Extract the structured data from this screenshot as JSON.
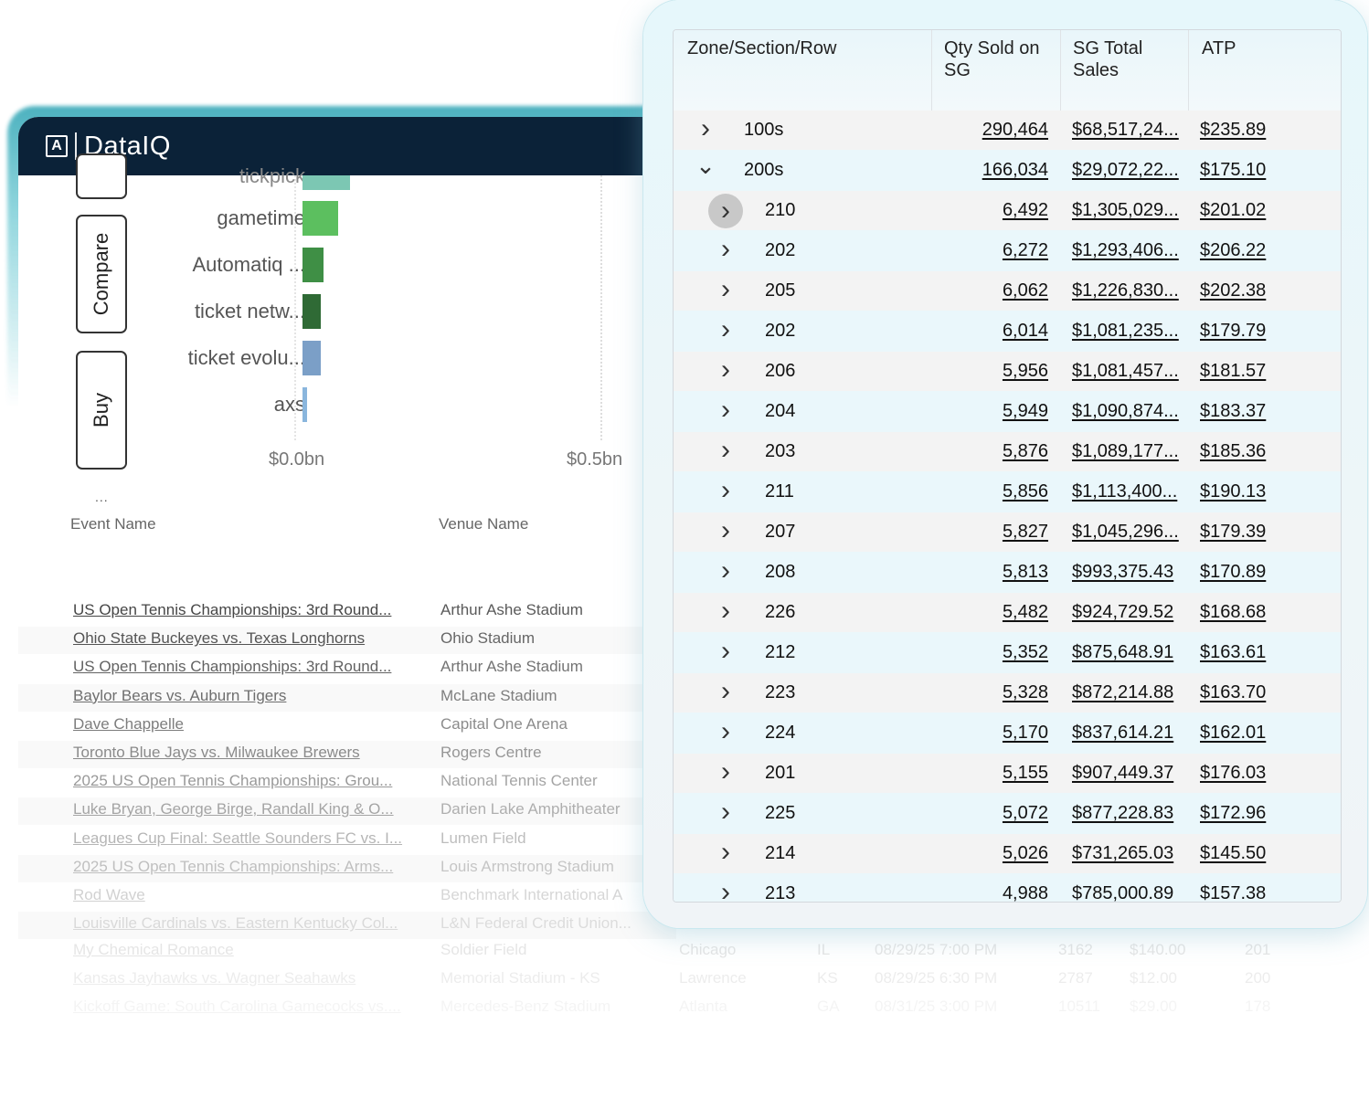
{
  "app": {
    "brand": "DataIQ",
    "logo_glyph": "A"
  },
  "side_buttons": {
    "top_partial": "",
    "compare": "Compare",
    "buy": "Buy",
    "more": "..."
  },
  "bar_chart": {
    "partial_label": "tickpick",
    "labels": [
      "gametime",
      "Automatiq ...",
      "ticket netw...",
      "ticket evolu...",
      "axs"
    ],
    "tick_labels": [
      "$0.0bn",
      "$0.5bn"
    ]
  },
  "chart_data": {
    "type": "bar",
    "orientation": "horizontal",
    "categories": [
      "tickpick",
      "gametime",
      "Automatiq ...",
      "ticket netw...",
      "ticket evolu...",
      "axs"
    ],
    "values": [
      0.08,
      0.06,
      0.035,
      0.03,
      0.03,
      0.008
    ],
    "xlim": [
      0,
      0.5
    ],
    "x_ticks": [
      "$0.0bn",
      "$0.5bn"
    ],
    "colors": [
      "#7cc7b3",
      "#5cbf5f",
      "#3f8f45",
      "#2f6a35",
      "#7b9fc7",
      "#8ab6dd"
    ]
  },
  "events": {
    "headers": {
      "event": "Event Name",
      "venue": "Venue Name"
    },
    "rows": [
      {
        "name": "US Open Tennis Championships: 3rd Round...",
        "venue": "Arthur Ashe Stadium"
      },
      {
        "name": "Ohio State Buckeyes vs. Texas Longhorns",
        "venue": "Ohio Stadium"
      },
      {
        "name": "US Open Tennis Championships: 3rd Round...",
        "venue": "Arthur Ashe Stadium"
      },
      {
        "name": "Baylor Bears vs. Auburn Tigers",
        "venue": "McLane Stadium"
      },
      {
        "name": "Dave Chappelle",
        "venue": "Capital One Arena"
      },
      {
        "name": "Toronto Blue Jays vs. Milwaukee Brewers",
        "venue": "Rogers Centre"
      },
      {
        "name": "2025 US Open Tennis Championships: Grou...",
        "venue": "National Tennis Center"
      },
      {
        "name": "Luke Bryan, George Birge, Randall King & O...",
        "venue": "Darien Lake Amphitheater"
      },
      {
        "name": "Leagues Cup Final: Seattle Sounders FC vs. I...",
        "venue": "Lumen Field"
      },
      {
        "name": "2025 US Open Tennis Championships: Arms...",
        "venue": "Louis Armstrong Stadium"
      },
      {
        "name": "Rod Wave",
        "venue": "Benchmark International A"
      },
      {
        "name": "Louisville Cardinals vs. Eastern Kentucky Col...",
        "venue": "L&N Federal Credit Union..."
      }
    ],
    "faded_rows": [
      {
        "name": "My Chemical Romance",
        "venue": "Soldier Field",
        "city": "Chicago",
        "state": "IL",
        "date": "08/29/25 7:00 PM",
        "qty": "3162",
        "price": "$140.00",
        "section": "201"
      },
      {
        "name": "Kansas Jayhawks vs. Wagner Seahawks",
        "venue": "Memorial Stadium - KS",
        "city": "Lawrence",
        "state": "KS",
        "date": "08/29/25 6:30 PM",
        "qty": "2787",
        "price": "$12.00",
        "section": "200"
      },
      {
        "name": "Kickoff Game: South Carolina Gamecocks vs....",
        "venue": "Mercedes-Benz Stadium",
        "city": "Atlanta",
        "state": "GA",
        "date": "08/31/25 3:00 PM",
        "qty": "10511",
        "price": "$29.00",
        "section": "178"
      }
    ]
  },
  "table": {
    "headers": {
      "zone": "Zone/Section/Row",
      "qty": "Qty Sold on SG",
      "sales": "SG Total Sales",
      "atp": "ATP"
    },
    "rows": [
      {
        "label": "100s",
        "qty": "290,464",
        "sales": "$68,517,24...",
        "atp": "$235.89",
        "level": 0,
        "expanded": false
      },
      {
        "label": "200s",
        "qty": "166,034",
        "sales": "$29,072,22...",
        "atp": "$175.10",
        "level": 0,
        "expanded": true
      },
      {
        "label": "210",
        "qty": "6,492",
        "sales": "$1,305,029...",
        "atp": "$201.02",
        "level": 1,
        "expanded": false,
        "hover": true
      },
      {
        "label": "202",
        "qty": "6,272",
        "sales": "$1,293,406...",
        "atp": "$206.22",
        "level": 1,
        "expanded": false
      },
      {
        "label": "205",
        "qty": "6,062",
        "sales": "$1,226,830...",
        "atp": "$202.38",
        "level": 1,
        "expanded": false
      },
      {
        "label": "202",
        "qty": "6,014",
        "sales": "$1,081,235...",
        "atp": "$179.79",
        "level": 1,
        "expanded": false
      },
      {
        "label": "206",
        "qty": "5,956",
        "sales": "$1,081,457...",
        "atp": "$181.57",
        "level": 1,
        "expanded": false
      },
      {
        "label": "204",
        "qty": "5,949",
        "sales": "$1,090,874...",
        "atp": "$183.37",
        "level": 1,
        "expanded": false
      },
      {
        "label": "203",
        "qty": "5,876",
        "sales": "$1,089,177...",
        "atp": "$185.36",
        "level": 1,
        "expanded": false
      },
      {
        "label": "211",
        "qty": "5,856",
        "sales": "$1,113,400...",
        "atp": "$190.13",
        "level": 1,
        "expanded": false
      },
      {
        "label": "207",
        "qty": "5,827",
        "sales": "$1,045,296...",
        "atp": "$179.39",
        "level": 1,
        "expanded": false
      },
      {
        "label": "208",
        "qty": "5,813",
        "sales": "$993,375.43",
        "atp": "$170.89",
        "level": 1,
        "expanded": false
      },
      {
        "label": "226",
        "qty": "5,482",
        "sales": "$924,729.52",
        "atp": "$168.68",
        "level": 1,
        "expanded": false
      },
      {
        "label": "212",
        "qty": "5,352",
        "sales": "$875,648.91",
        "atp": "$163.61",
        "level": 1,
        "expanded": false
      },
      {
        "label": "223",
        "qty": "5,328",
        "sales": "$872,214.88",
        "atp": "$163.70",
        "level": 1,
        "expanded": false
      },
      {
        "label": "224",
        "qty": "5,170",
        "sales": "$837,614.21",
        "atp": "$162.01",
        "level": 1,
        "expanded": false
      },
      {
        "label": "201",
        "qty": "5,155",
        "sales": "$907,449.37",
        "atp": "$176.03",
        "level": 1,
        "expanded": false
      },
      {
        "label": "225",
        "qty": "5,072",
        "sales": "$877,228.83",
        "atp": "$172.96",
        "level": 1,
        "expanded": false
      },
      {
        "label": "214",
        "qty": "5,026",
        "sales": "$731,265.03",
        "atp": "$145.50",
        "level": 1,
        "expanded": false
      },
      {
        "label": "213",
        "qty": "4,988",
        "sales": "$785,000.89",
        "atp": "$157.38",
        "level": 1,
        "expanded": false
      }
    ]
  },
  "icons": {
    "expand": "chevron-right-icon",
    "collapse": "chevron-down-icon"
  },
  "colors": {
    "appbar": "#0b2238",
    "accent": "#2fa5b5",
    "row_highlight": "#eaf7fb"
  }
}
